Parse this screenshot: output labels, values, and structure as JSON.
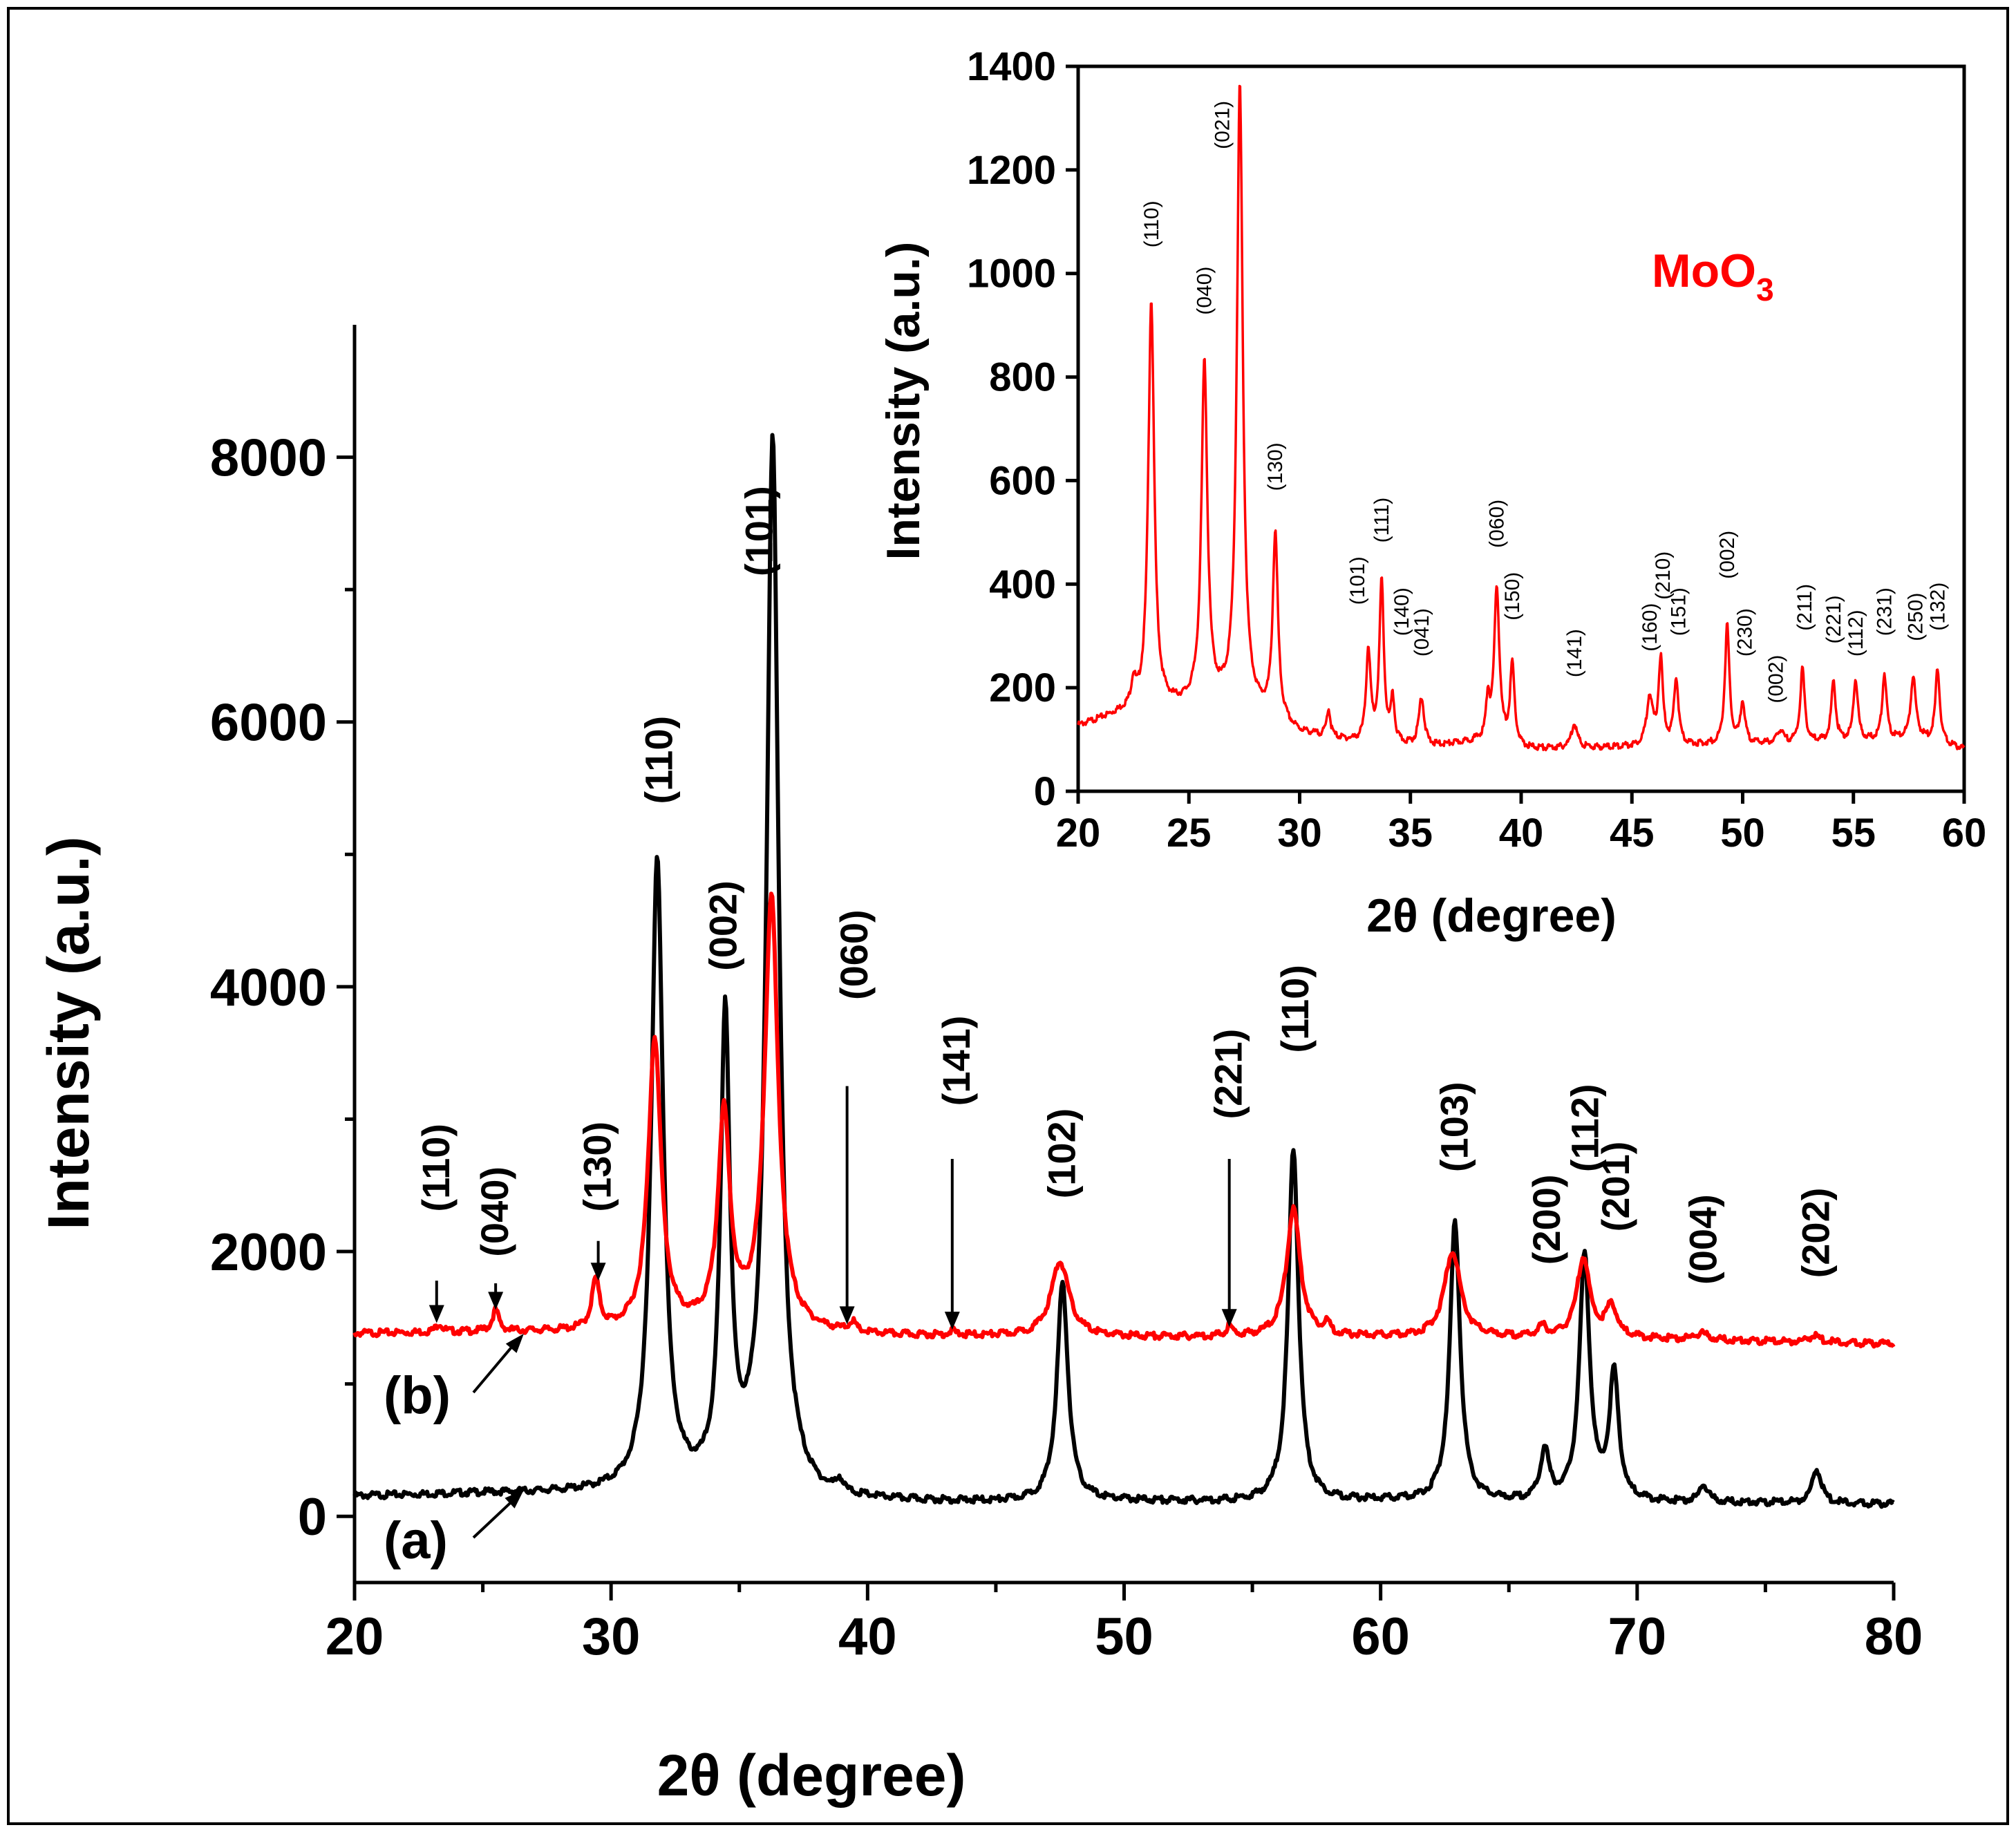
{
  "colors": {
    "sample_a": "#000000",
    "sample_b": "#ff0000",
    "inset_line": "#ff0000",
    "inset_title": "#ff0000"
  },
  "chart_data": [
    {
      "type": "line",
      "panel": "main",
      "xlabel": "2θ (degree)",
      "ylabel": "Intensity (a.u.)",
      "xlim": [
        20,
        80
      ],
      "ylim": [
        -500,
        9000
      ],
      "xticks": [
        20,
        30,
        40,
        50,
        60,
        70,
        80
      ],
      "yticks": [
        0,
        2000,
        4000,
        6000,
        8000
      ],
      "series": [
        {
          "name": "(a)",
          "color": "#000000",
          "baseline": [
            [
              20,
              150
            ],
            [
              25,
              170
            ],
            [
              30,
              170
            ],
            [
              34,
              160
            ],
            [
              35.4,
              220
            ],
            [
              38,
              110
            ],
            [
              45,
              100
            ],
            [
              50,
              110
            ],
            [
              55,
              100
            ],
            [
              60,
              110
            ],
            [
              65,
              100
            ],
            [
              70,
              100
            ],
            [
              75,
              100
            ],
            [
              80,
              90
            ]
          ],
          "peaks": [
            {
              "x": 31.8,
              "y": 4950,
              "w": 0.28
            },
            {
              "x": 34.45,
              "y": 3700,
              "w": 0.22
            },
            {
              "x": 36.3,
              "y": 8120,
              "w": 0.28
            },
            {
              "x": 38.9,
              "y": 200,
              "w": 0.15
            },
            {
              "x": 47.6,
              "y": 1750,
              "w": 0.26
            },
            {
              "x": 56.6,
              "y": 2780,
              "w": 0.24
            },
            {
              "x": 62.9,
              "y": 2220,
              "w": 0.24
            },
            {
              "x": 66.4,
              "y": 480,
              "w": 0.2
            },
            {
              "x": 67.95,
              "y": 1950,
              "w": 0.24
            },
            {
              "x": 69.1,
              "y": 1050,
              "w": 0.22
            },
            {
              "x": 72.6,
              "y": 230,
              "w": 0.2
            },
            {
              "x": 77.0,
              "y": 350,
              "w": 0.22
            }
          ]
        },
        {
          "name": "(b)",
          "color": "#ff0000",
          "baseline": [
            [
              20,
              1380
            ],
            [
              25,
              1390
            ],
            [
              30,
              1390
            ],
            [
              35,
              1400
            ],
            [
              40,
              1360
            ],
            [
              50,
              1350
            ],
            [
              60,
              1350
            ],
            [
              70,
              1340
            ],
            [
              80,
              1300
            ]
          ],
          "peaks": [
            {
              "x": 23.3,
              "y": 1450,
              "w": 0.15
            },
            {
              "x": 25.5,
              "y": 1550,
              "w": 0.15
            },
            {
              "x": 29.4,
              "y": 1760,
              "w": 0.18
            },
            {
              "x": 31.7,
              "y": 3600,
              "w": 0.3
            },
            {
              "x": 34.4,
              "y": 3000,
              "w": 0.28
            },
            {
              "x": 36.25,
              "y": 4650,
              "w": 0.32
            },
            {
              "x": 39.4,
              "y": 1440,
              "w": 0.15
            },
            {
              "x": 43.3,
              "y": 1390,
              "w": 0.15
            },
            {
              "x": 47.5,
              "y": 1920,
              "w": 0.42
            },
            {
              "x": 54.1,
              "y": 1420,
              "w": 0.15
            },
            {
              "x": 56.6,
              "y": 2320,
              "w": 0.32
            },
            {
              "x": 57.9,
              "y": 1430,
              "w": 0.15
            },
            {
              "x": 62.8,
              "y": 2000,
              "w": 0.38
            },
            {
              "x": 66.3,
              "y": 1420,
              "w": 0.2
            },
            {
              "x": 67.9,
              "y": 1950,
              "w": 0.3
            },
            {
              "x": 69.0,
              "y": 1580,
              "w": 0.25
            },
            {
              "x": 72.5,
              "y": 1380,
              "w": 0.3
            },
            {
              "x": 76.9,
              "y": 1360,
              "w": 0.3
            }
          ]
        }
      ],
      "peak_labels": [
        {
          "text": "(110)",
          "x": 23.2,
          "y": 2300
        },
        {
          "text": "(040)",
          "x": 25.5,
          "y": 1960
        },
        {
          "text": "(130)",
          "x": 29.5,
          "y": 2300
        },
        {
          "text": "(110)",
          "x": 31.9,
          "y": 5380
        },
        {
          "text": "(002)",
          "x": 34.4,
          "y": 4120
        },
        {
          "text": "(101)",
          "x": 35.8,
          "y": 7100
        },
        {
          "text": "(060)",
          "x": 39.5,
          "y": 3900
        },
        {
          "text": "(141)",
          "x": 43.5,
          "y": 3100
        },
        {
          "text": "(102)",
          "x": 47.6,
          "y": 2400
        },
        {
          "text": "(221)",
          "x": 54.1,
          "y": 3000
        },
        {
          "text": "(110)",
          "x": 56.7,
          "y": 3500
        },
        {
          "text": "(103)",
          "x": 62.9,
          "y": 2600
        },
        {
          "text": "(200)",
          "x": 66.5,
          "y": 1900
        },
        {
          "text": "(112)",
          "x": 68.0,
          "y": 2600
        },
        {
          "text": "(201)",
          "x": 69.2,
          "y": 2150
        },
        {
          "text": "(004)",
          "x": 72.6,
          "y": 1750
        },
        {
          "text": "(202)",
          "x": 77.0,
          "y": 1800
        }
      ],
      "marker_arrows": [
        {
          "x": 23.2,
          "y_top": 1780,
          "y_tip": 1460
        },
        {
          "x": 25.5,
          "y_top": 1760,
          "y_tip": 1560
        },
        {
          "x": 29.5,
          "y_top": 2080,
          "y_tip": 1780
        },
        {
          "x": 39.2,
          "y_top": 3250,
          "y_tip": 1450
        },
        {
          "x": 43.3,
          "y_top": 2700,
          "y_tip": 1410
        },
        {
          "x": 54.1,
          "y_top": 2700,
          "y_tip": 1430
        }
      ],
      "sample_labels": [
        {
          "text": "(b)",
          "pointer_to": [
            26.6,
            1380
          ]
        },
        {
          "text": "(a)",
          "pointer_to": [
            26.6,
            200
          ]
        }
      ]
    },
    {
      "type": "line",
      "panel": "inset",
      "title": "MoO",
      "title_sub": "3",
      "xlabel": "2θ (degree)",
      "ylabel": "Intensity (a.u.)",
      "xlim": [
        20,
        60
      ],
      "ylim": [
        0,
        1400
      ],
      "xticks": [
        20,
        25,
        30,
        35,
        40,
        45,
        50,
        55,
        60
      ],
      "yticks": [
        0,
        200,
        400,
        600,
        800,
        1000,
        1200,
        1400
      ],
      "series": [
        {
          "name": "MoO3",
          "color": "#ff0000",
          "baseline": [
            [
              20,
              125
            ],
            [
              22,
              150
            ],
            [
              24,
              160
            ],
            [
              26,
              165
            ],
            [
              28,
              150
            ],
            [
              30,
              110
            ],
            [
              33,
              90
            ],
            [
              36,
              85
            ],
            [
              38,
              95
            ],
            [
              40,
              80
            ],
            [
              45,
              85
            ],
            [
              50,
              90
            ],
            [
              55,
              95
            ],
            [
              58,
              100
            ],
            [
              60,
              80
            ]
          ],
          "peaks": [
            {
              "x": 22.5,
              "y": 200,
              "w": 0.12
            },
            {
              "x": 23.3,
              "y": 945,
              "w": 0.16
            },
            {
              "x": 25.7,
              "y": 820,
              "w": 0.16
            },
            {
              "x": 27.3,
              "y": 1355,
              "w": 0.16
            },
            {
              "x": 28.9,
              "y": 490,
              "w": 0.14
            },
            {
              "x": 31.3,
              "y": 155,
              "w": 0.1
            },
            {
              "x": 33.1,
              "y": 270,
              "w": 0.12
            },
            {
              "x": 33.7,
              "y": 400,
              "w": 0.12
            },
            {
              "x": 34.2,
              "y": 170,
              "w": 0.1
            },
            {
              "x": 35.5,
              "y": 180,
              "w": 0.14
            },
            {
              "x": 38.5,
              "y": 170,
              "w": 0.1
            },
            {
              "x": 38.9,
              "y": 390,
              "w": 0.14
            },
            {
              "x": 39.6,
              "y": 240,
              "w": 0.12
            },
            {
              "x": 42.4,
              "y": 130,
              "w": 0.16
            },
            {
              "x": 45.8,
              "y": 180,
              "w": 0.16
            },
            {
              "x": 46.3,
              "y": 250,
              "w": 0.12
            },
            {
              "x": 47.0,
              "y": 215,
              "w": 0.12
            },
            {
              "x": 49.3,
              "y": 320,
              "w": 0.12
            },
            {
              "x": 50.0,
              "y": 170,
              "w": 0.12
            },
            {
              "x": 51.7,
              "y": 115,
              "w": 0.16
            },
            {
              "x": 52.7,
              "y": 235,
              "w": 0.12
            },
            {
              "x": 54.1,
              "y": 210,
              "w": 0.12
            },
            {
              "x": 55.1,
              "y": 215,
              "w": 0.12
            },
            {
              "x": 56.4,
              "y": 225,
              "w": 0.12
            },
            {
              "x": 57.7,
              "y": 220,
              "w": 0.14
            },
            {
              "x": 58.8,
              "y": 235,
              "w": 0.12
            }
          ]
        }
      ],
      "peak_labels": [
        {
          "text": "(110)",
          "x": 23.3,
          "y": 1050
        },
        {
          "text": "(040)",
          "x": 25.7,
          "y": 920
        },
        {
          "text": "(021)",
          "x": 26.5,
          "y": 1240
        },
        {
          "text": "(130)",
          "x": 28.9,
          "y": 580
        },
        {
          "text": "(101)",
          "x": 32.6,
          "y": 360
        },
        {
          "text": "(111)",
          "x": 33.7,
          "y": 480
        },
        {
          "text": "(140)",
          "x": 34.6,
          "y": 300
        },
        {
          "text": "(041)",
          "x": 35.5,
          "y": 260
        },
        {
          "text": "(060)",
          "x": 38.9,
          "y": 470
        },
        {
          "text": "(150)",
          "x": 39.6,
          "y": 330
        },
        {
          "text": "(141)",
          "x": 42.4,
          "y": 220
        },
        {
          "text": "(160)",
          "x": 45.8,
          "y": 270
        },
        {
          "text": "(210)",
          "x": 46.4,
          "y": 370
        },
        {
          "text": "(151)",
          "x": 47.1,
          "y": 300
        },
        {
          "text": "(002)",
          "x": 49.3,
          "y": 410
        },
        {
          "text": "(230)",
          "x": 50.1,
          "y": 260
        },
        {
          "text": "(002)",
          "x": 51.5,
          "y": 170
        },
        {
          "text": "(211)",
          "x": 52.8,
          "y": 310
        },
        {
          "text": "(221)",
          "x": 54.1,
          "y": 285
        },
        {
          "text": "(112)",
          "x": 55.1,
          "y": 260
        },
        {
          "text": "(231)",
          "x": 56.4,
          "y": 300
        },
        {
          "text": "(250)",
          "x": 57.8,
          "y": 290
        },
        {
          "text": "(132)",
          "x": 58.8,
          "y": 310
        }
      ]
    }
  ]
}
